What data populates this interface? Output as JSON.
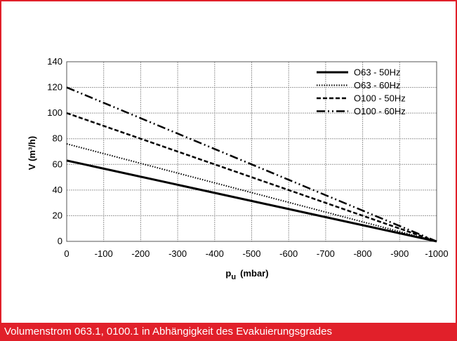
{
  "caption": "Volumenstrom 063.1, 0100.1 in Abhängigkeit des Evakuierungsgrades",
  "colors": {
    "frame": "#e1202a",
    "line": "#000000",
    "grid": "#9a9a9a"
  },
  "chart_data": {
    "type": "line",
    "title": "",
    "xlabel_main": "p",
    "xlabel_sub": "u",
    "xlabel_unit": "(mbar)",
    "ylabel": "V  (m³/h)",
    "x": [
      0,
      -1000
    ],
    "xticks": [
      0,
      -100,
      -200,
      -300,
      -400,
      -500,
      -600,
      -700,
      -800,
      -900,
      -1000
    ],
    "xlim": [
      0,
      -1000
    ],
    "ylim": [
      0,
      140
    ],
    "yticks": [
      0,
      20,
      40,
      60,
      80,
      100,
      120,
      140
    ],
    "grid": true,
    "legend_position": "top-right",
    "series": [
      {
        "name": "O63 - 50Hz",
        "style": "solid",
        "values": [
          63,
          0
        ]
      },
      {
        "name": "O63 - 60Hz",
        "style": "dotted",
        "values": [
          76,
          0
        ]
      },
      {
        "name": "O100 - 50Hz",
        "style": "dashed",
        "values": [
          100,
          0
        ]
      },
      {
        "name": "O100 - 60Hz",
        "style": "dash-dot-dot",
        "values": [
          120,
          0
        ]
      }
    ]
  }
}
